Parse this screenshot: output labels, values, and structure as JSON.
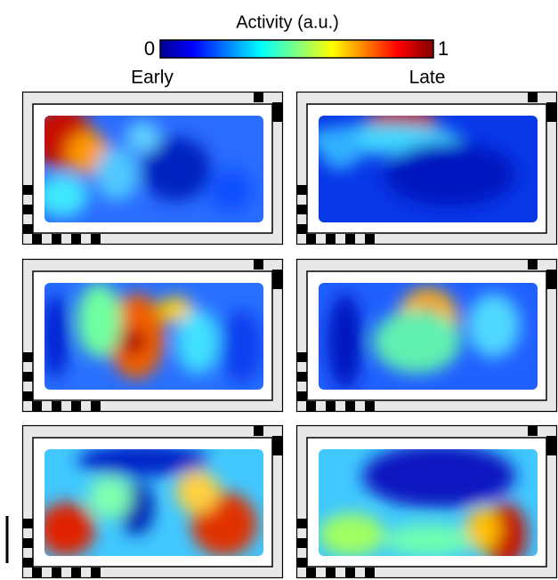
{
  "colorbar": {
    "title": "Activity (a.u.)",
    "min_label": "0",
    "max_label": "1"
  },
  "columns": [
    "Early",
    "Late"
  ]
}
